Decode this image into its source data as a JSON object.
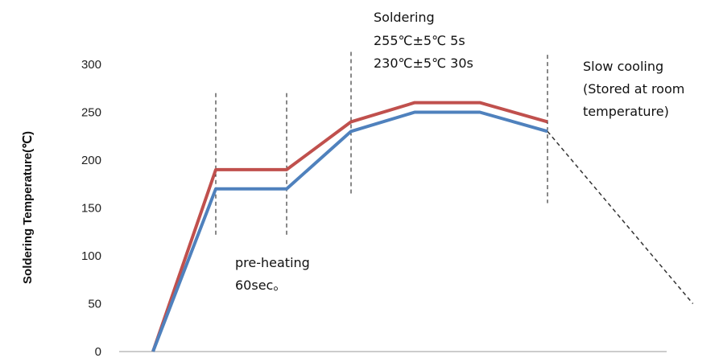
{
  "chart_data": {
    "type": "line",
    "ylabel": "Soldering Temperature(℃)",
    "ylim": [
      0,
      300
    ],
    "yticks": [
      0,
      50,
      100,
      150,
      200,
      250,
      300
    ],
    "grid": false,
    "series": [
      {
        "color": "#c0504d",
        "points": [
          [
            0,
            0
          ],
          [
            1,
            190
          ],
          [
            2,
            190
          ],
          [
            3,
            240
          ],
          [
            4,
            260
          ],
          [
            5,
            260
          ],
          [
            6,
            240
          ]
        ]
      },
      {
        "color": "#4f81bd",
        "points": [
          [
            0,
            0
          ],
          [
            1,
            170
          ],
          [
            2,
            170
          ],
          [
            3,
            230
          ],
          [
            4,
            250
          ],
          [
            5,
            250
          ],
          [
            6,
            230
          ]
        ]
      }
    ],
    "cooling_line": {
      "color": "#333333",
      "points": [
        [
          6,
          230
        ],
        [
          8.15,
          50
        ]
      ]
    },
    "phase_markers": [
      {
        "x": 1,
        "y_range": [
          120,
          270
        ]
      },
      {
        "x": 2,
        "y_range": [
          120,
          270
        ]
      },
      {
        "x": 3,
        "y_range": [
          165,
          313
        ]
      },
      {
        "x": 6,
        "y_range": [
          155,
          310
        ]
      }
    ],
    "annotations": {
      "soldering": [
        "Soldering",
        "255℃±5℃ 5s",
        "230℃±5℃ 30s"
      ],
      "slow_cooling": [
        "Slow cooling",
        "(Stored at room",
        "temperature)"
      ],
      "preheating": [
        "pre-heating",
        "60sec。"
      ]
    }
  }
}
